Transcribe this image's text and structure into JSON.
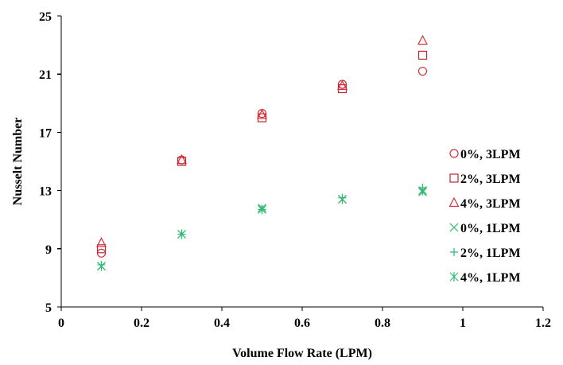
{
  "chart_data": {
    "type": "scatter",
    "title": "",
    "xlabel": "Volume Flow Rate (LPM)",
    "ylabel": "Nusselt Number",
    "xlim": [
      0,
      1.2
    ],
    "ylim": [
      5,
      25
    ],
    "xticks": [
      "0",
      "0.2",
      "0.4",
      "0.6",
      "0.8",
      "1",
      "1.2"
    ],
    "yticks": [
      "5",
      "9",
      "13",
      "17",
      "21",
      "25"
    ],
    "grid": false,
    "legend_position": "right",
    "series": [
      {
        "name": "0%, 3LPM",
        "marker": "circle",
        "color": "#d62f3a",
        "x": [
          0.1,
          0.3,
          0.5,
          0.7,
          0.9
        ],
        "y": [
          8.7,
          15.1,
          18.3,
          20.3,
          21.2
        ]
      },
      {
        "name": "2%, 3LPM",
        "marker": "square",
        "color": "#c0272f",
        "x": [
          0.1,
          0.3,
          0.5,
          0.7,
          0.9
        ],
        "y": [
          9.0,
          15.0,
          18.0,
          20.0,
          22.3
        ]
      },
      {
        "name": "4%, 3LPM",
        "marker": "triangle",
        "color": "#d62f3a",
        "x": [
          0.1,
          0.3,
          0.5,
          0.7,
          0.9
        ],
        "y": [
          9.4,
          15.1,
          18.2,
          20.2,
          23.3
        ]
      },
      {
        "name": "0%, 1LPM",
        "marker": "x",
        "color": "#2eb872",
        "x": [
          0.1,
          0.3,
          0.5,
          0.7,
          0.9
        ],
        "y": [
          7.8,
          10.0,
          11.8,
          12.4,
          12.9
        ]
      },
      {
        "name": "2%, 1LPM",
        "marker": "plus",
        "color": "#2eb872",
        "x": [
          0.1,
          0.3,
          0.5,
          0.7,
          0.9
        ],
        "y": [
          7.9,
          10.0,
          11.7,
          12.5,
          13.2
        ]
      },
      {
        "name": "4%, 1LPM",
        "marker": "asterisk",
        "color": "#2eb872",
        "x": [
          0.1,
          0.3,
          0.5,
          0.7,
          0.9
        ],
        "y": [
          7.8,
          10.0,
          11.7,
          12.4,
          13.0
        ]
      }
    ]
  }
}
